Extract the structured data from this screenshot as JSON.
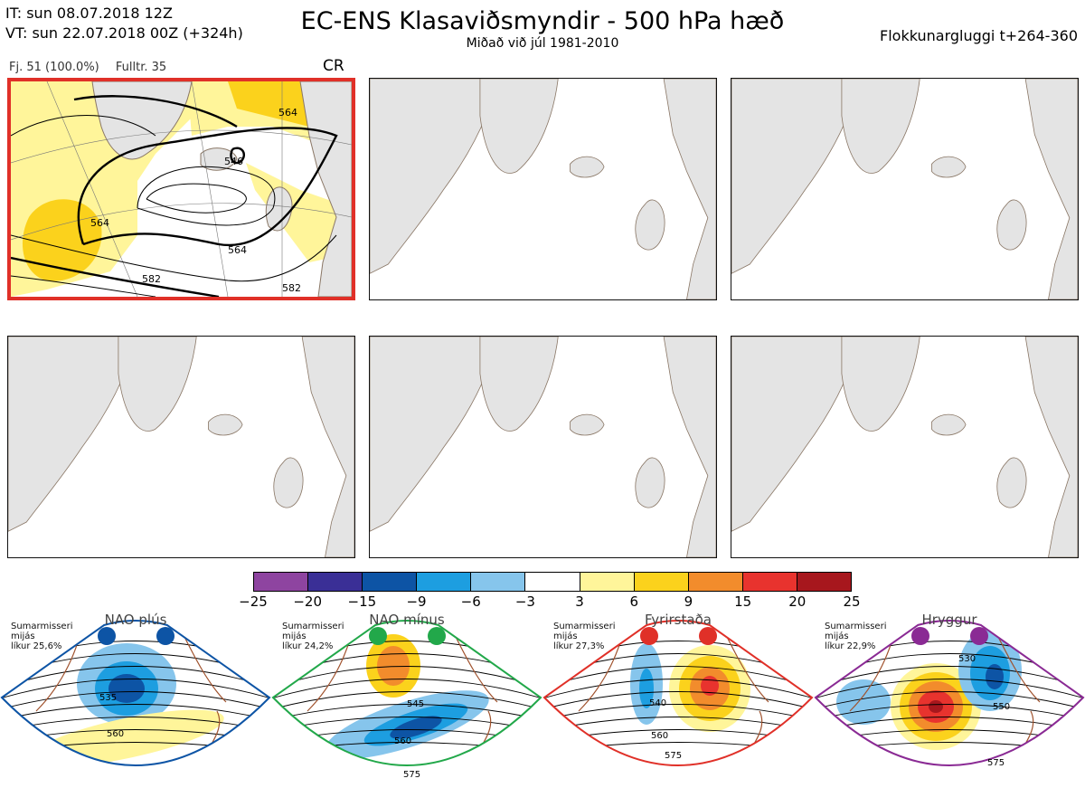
{
  "header": {
    "it_line": "IT: sun 08.07.2018 12Z",
    "vt_line": "VT: sun 22.07.2018 00Z  (+324h)",
    "title": "EC-ENS Klasaviðsmyndir - 500 hPa hæð",
    "subtitle": "Miðað við júl 1981-2010",
    "window": "Flokkunargluggi t+264-360"
  },
  "panel1": {
    "count": "Fj. 51 (100.0%)",
    "representative": "Fulltr. 35",
    "regime_code": "CR",
    "contour_labels": [
      "564",
      "564",
      "564",
      "582",
      "582",
      "546"
    ],
    "border_color": "#e03028"
  },
  "colorbar": {
    "colors": [
      "#8e44a0",
      "#3a2f96",
      "#0d54a5",
      "#1d9ee0",
      "#86c5ec",
      "#ffffff",
      "#fff59a",
      "#fbd21c",
      "#f28c2c",
      "#e8332e",
      "#a7171d"
    ],
    "ticks": [
      "−25",
      "−20",
      "−15",
      "−9",
      "−6",
      "−3",
      "3",
      "6",
      "9",
      "15",
      "20",
      "25"
    ]
  },
  "regimes": [
    {
      "name": "NAO plús",
      "season": "Sumarmisseri",
      "type": "mijás",
      "prob": "líkur 25,6%",
      "color": "#0d54a5",
      "labels": [
        "535",
        "560"
      ]
    },
    {
      "name": "NAO mínus",
      "season": "Sumarmisseri",
      "type": "mijás",
      "prob": "líkur 24,2%",
      "color": "#22a84a",
      "labels": [
        "545",
        "560",
        "575"
      ]
    },
    {
      "name": "Fyrirstaða",
      "season": "Sumarmisseri",
      "type": "mijás",
      "prob": "líkur 27,3%",
      "color": "#e03028",
      "labels": [
        "540",
        "560",
        "575"
      ]
    },
    {
      "name": "Hryggur",
      "season": "Sumarmisseri",
      "type": "mijás",
      "prob": "líkur 22,9%",
      "color": "#8a2a94",
      "labels": [
        "530",
        "550",
        "575"
      ]
    }
  ]
}
